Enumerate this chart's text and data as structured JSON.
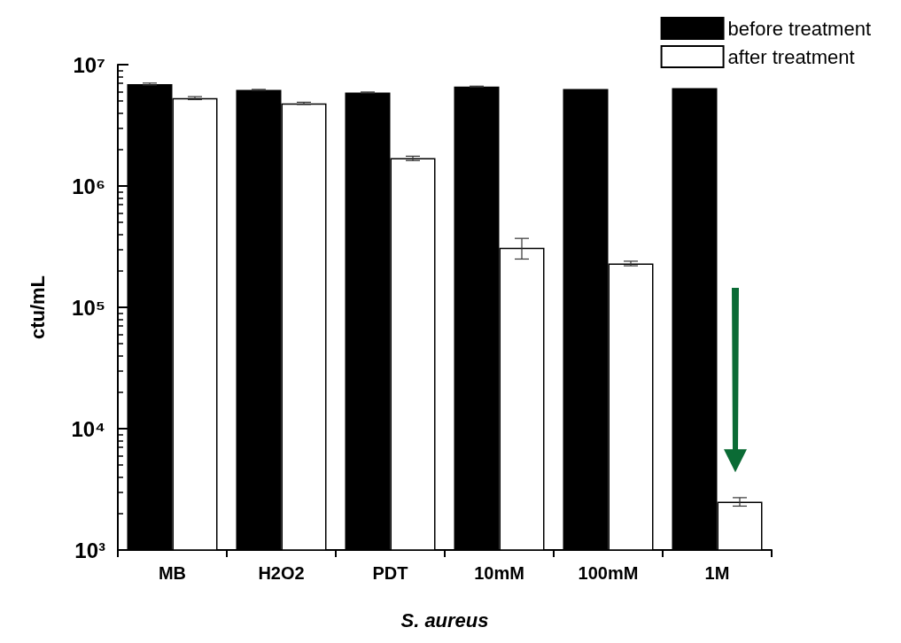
{
  "chart_data": {
    "type": "bar",
    "xlabel": "S. aureus",
    "ylabel": "ctu/mL",
    "categories": [
      "MB",
      "H2O2",
      "PDT",
      "10mM",
      "100mM",
      "1M"
    ],
    "series": [
      {
        "name": "before treatment",
        "color": "#000000",
        "values": [
          6900000,
          6200000,
          5900000,
          6600000,
          6300000,
          6400000
        ],
        "errors": [
          [
            6800000,
            7050000
          ],
          [
            6150000,
            6250000
          ],
          [
            5850000,
            5950000
          ],
          [
            6550000,
            6650000
          ],
          null,
          null
        ]
      },
      {
        "name": "after treatment",
        "color": "#ffffff",
        "values": [
          5300000,
          4800000,
          1700000,
          310000,
          230000,
          2500
        ],
        "errors": [
          [
            5150000,
            5450000
          ],
          [
            4700000,
            4900000
          ],
          [
            1620000,
            1760000
          ],
          [
            250000,
            370000
          ],
          [
            220000,
            240000
          ],
          [
            2300.0,
            2700
          ]
        ]
      }
    ],
    "log": "y",
    "ylim": [
      1000,
      10000000
    ],
    "yticks": [
      {
        "value": 1000,
        "label": "10³"
      },
      {
        "value": 10000,
        "label": "10⁴"
      },
      {
        "value": 100000,
        "label": "10⁵"
      },
      {
        "value": 1000000,
        "label": "10⁶"
      },
      {
        "value": 10000000,
        "label": "10⁷"
      }
    ],
    "legend": "top right",
    "grid": false
  }
}
